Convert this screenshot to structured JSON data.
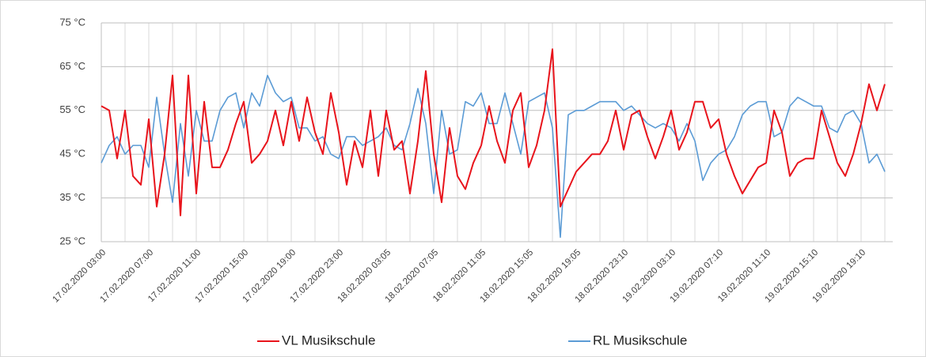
{
  "chart_data": {
    "type": "line",
    "categories": [
      "17.02.2020 03:00",
      null,
      null,
      null,
      null,
      null,
      "17.02.2020 07:00",
      null,
      null,
      null,
      null,
      null,
      "17.02.2020 11:00",
      null,
      null,
      null,
      null,
      null,
      "17.02.2020 15:00",
      null,
      null,
      null,
      null,
      null,
      "17.02.2020 19:00",
      null,
      null,
      null,
      null,
      null,
      "17.02.2020 23:00",
      null,
      null,
      null,
      null,
      null,
      "18.02.2020 03:05",
      null,
      null,
      null,
      null,
      null,
      "18.02.2020 07:05",
      null,
      null,
      null,
      null,
      null,
      "18.02.2020 11:05",
      null,
      null,
      null,
      null,
      null,
      "18.02.2020 15:05",
      null,
      null,
      null,
      null,
      null,
      "18.02.2020 19:05",
      null,
      null,
      null,
      null,
      null,
      "18.02.2020 23:10",
      null,
      null,
      null,
      null,
      null,
      "19.02.2020 03:10",
      null,
      null,
      null,
      null,
      null,
      "19.02.2020 07:10",
      null,
      null,
      null,
      null,
      null,
      "19.02.2020 11:10",
      null,
      null,
      null,
      null,
      null,
      "19.02.2020 15:10",
      null,
      null,
      null,
      null,
      null,
      "19.02.2020 19:10",
      null,
      null,
      null
    ],
    "series": [
      {
        "name": "VL Musikschule",
        "color": "#e8141c",
        "values": [
          56,
          55,
          44,
          55,
          40,
          38,
          53,
          33,
          45,
          63,
          31,
          63,
          36,
          57,
          42,
          42,
          46,
          52,
          57,
          43,
          45,
          48,
          55,
          47,
          57,
          48,
          58,
          50,
          45,
          59,
          50,
          38,
          48,
          42,
          55,
          40,
          55,
          46,
          48,
          36,
          48,
          64,
          45,
          34,
          51,
          40,
          37,
          43,
          47,
          56,
          48,
          43,
          55,
          59,
          42,
          47,
          55,
          69,
          33,
          37,
          41,
          43,
          45,
          45,
          48,
          55,
          46,
          54,
          55,
          49,
          44,
          49,
          55,
          46,
          50,
          57,
          57,
          51,
          53,
          45,
          40,
          36,
          39,
          42,
          43,
          55,
          50,
          40,
          43,
          44,
          44,
          55,
          49,
          43,
          40,
          45,
          52,
          61,
          55,
          61
        ]
      },
      {
        "name": "RL Musikschule",
        "color": "#5b9bd5",
        "values": [
          43,
          47,
          49,
          45,
          47,
          47,
          42,
          58,
          45,
          34,
          52,
          40,
          55,
          48,
          48,
          55,
          58,
          59,
          51,
          59,
          56,
          63,
          59,
          57,
          58,
          51,
          51,
          48,
          49,
          45,
          44,
          49,
          49,
          47,
          48,
          49,
          51,
          47,
          46,
          52,
          60,
          52,
          36,
          55,
          45,
          46,
          57,
          56,
          59,
          52,
          52,
          59,
          52,
          45,
          57,
          58,
          59,
          51,
          26,
          54,
          55,
          55,
          56,
          57,
          57,
          57,
          55,
          56,
          54,
          52,
          51,
          52,
          51,
          48,
          52,
          48,
          39,
          43,
          45,
          46,
          49,
          54,
          56,
          57,
          57,
          49,
          50,
          56,
          58,
          57,
          56,
          56,
          51,
          50,
          54,
          55,
          52,
          43,
          45,
          41
        ]
      }
    ],
    "ylim": [
      25,
      75
    ],
    "yticks": [
      {
        "value": 25,
        "label": "25 °C"
      },
      {
        "value": 35,
        "label": "35 °C"
      },
      {
        "value": 45,
        "label": "45 °C"
      },
      {
        "value": 55,
        "label": "55 °C"
      },
      {
        "value": 65,
        "label": "65 °C"
      },
      {
        "value": 75,
        "label": "75 °C"
      }
    ],
    "grid": true,
    "legend": "bottom"
  }
}
